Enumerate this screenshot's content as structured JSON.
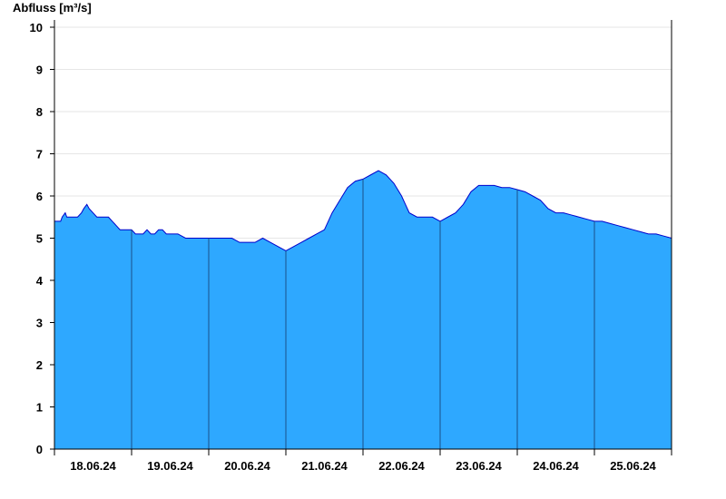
{
  "chart_data": {
    "type": "area",
    "title": "",
    "ylabel": "Abfluss [m³/s]",
    "xlabel": "",
    "ylim": [
      0,
      10
    ],
    "yticks": [
      0,
      1,
      2,
      3,
      4,
      5,
      6,
      7,
      8,
      9,
      10
    ],
    "grid_y": true,
    "day_labels": [
      "18.06.24",
      "19.06.24",
      "20.06.24",
      "21.06.24",
      "22.06.24",
      "23.06.24",
      "24.06.24",
      "25.06.24"
    ],
    "x_range_days": [
      0,
      8
    ],
    "colors": {
      "fill": "#2ea8ff",
      "line": "#0000cc",
      "grid": "#e6e6e6",
      "divider": "#1a4f8a"
    },
    "series": [
      {
        "x": [
          0,
          0.08,
          0.1,
          0.14,
          0.16,
          0.2,
          0.22,
          0.3,
          0.35,
          0.38,
          0.42,
          0.45,
          0.5,
          0.55,
          0.6,
          0.62,
          0.7,
          0.75,
          0.8,
          0.85,
          0.9,
          0.95,
          1.0,
          1.05,
          1.1,
          1.15,
          1.2,
          1.25,
          1.3,
          1.35,
          1.4,
          1.45,
          1.5,
          1.55,
          1.6,
          1.7,
          1.8,
          1.9,
          2.0,
          2.1,
          2.2,
          2.3,
          2.4,
          2.5,
          2.6,
          2.7,
          2.8,
          2.9,
          3.0,
          3.1,
          3.2,
          3.3,
          3.4,
          3.5,
          3.6,
          3.7,
          3.8,
          3.9,
          4.0,
          4.1,
          4.2,
          4.3,
          4.35,
          4.4,
          4.5,
          4.55,
          4.6,
          4.7,
          4.8,
          4.9,
          5.0,
          5.1,
          5.2,
          5.3,
          5.4,
          5.5,
          5.6,
          5.7,
          5.8,
          5.9,
          6.0,
          6.1,
          6.2,
          6.3,
          6.4,
          6.5,
          6.6,
          6.7,
          6.8,
          6.9,
          7.0,
          7.1,
          7.2,
          7.3,
          7.4,
          7.5,
          7.6,
          7.7,
          7.8,
          7.9,
          8.0
        ],
        "y": [
          5.4,
          5.4,
          5.5,
          5.6,
          5.5,
          5.5,
          5.5,
          5.5,
          5.6,
          5.7,
          5.8,
          5.7,
          5.6,
          5.5,
          5.5,
          5.5,
          5.5,
          5.4,
          5.3,
          5.2,
          5.2,
          5.2,
          5.2,
          5.1,
          5.1,
          5.1,
          5.2,
          5.1,
          5.1,
          5.2,
          5.2,
          5.1,
          5.1,
          5.1,
          5.1,
          5.0,
          5.0,
          5.0,
          5.0,
          5.0,
          5.0,
          5.0,
          4.9,
          4.9,
          4.9,
          5.0,
          4.9,
          4.8,
          4.7,
          4.8,
          4.9,
          5.0,
          5.1,
          5.2,
          5.6,
          5.9,
          6.2,
          6.35,
          6.4,
          6.5,
          6.6,
          6.5,
          6.4,
          6.3,
          6.0,
          5.8,
          5.6,
          5.5,
          5.5,
          5.5,
          5.4,
          5.5,
          5.6,
          5.8,
          6.1,
          6.25,
          6.25,
          6.25,
          6.2,
          6.2,
          6.15,
          6.1,
          6.0,
          5.9,
          5.7,
          5.6,
          5.6,
          5.55,
          5.5,
          5.45,
          5.4,
          5.4,
          5.35,
          5.3,
          5.25,
          5.2,
          5.15,
          5.1,
          5.1,
          5.05,
          5.0
        ]
      }
    ]
  }
}
